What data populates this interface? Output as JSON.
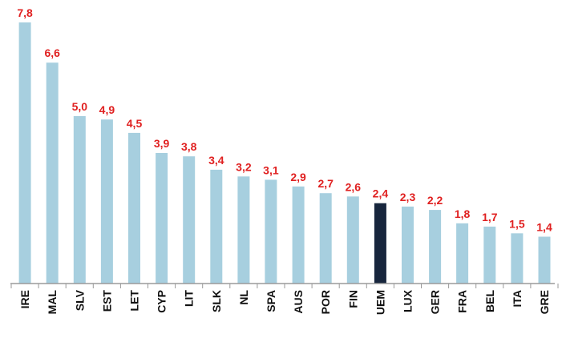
{
  "chart_data": {
    "type": "bar",
    "categories": [
      "IRE",
      "MAL",
      "SLV",
      "EST",
      "LET",
      "CYP",
      "LIT",
      "SLK",
      "NL",
      "SPA",
      "AUS",
      "POR",
      "FIN",
      "UEM",
      "LUX",
      "GER",
      "FRA",
      "BEL",
      "ITA",
      "GRE"
    ],
    "values": [
      7.8,
      6.6,
      5.0,
      4.9,
      4.5,
      3.9,
      3.8,
      3.4,
      3.2,
      3.1,
      2.9,
      2.7,
      2.6,
      2.4,
      2.3,
      2.2,
      1.8,
      1.7,
      1.5,
      1.4
    ],
    "value_labels": [
      "7,8",
      "6,6",
      "5,0",
      "4,9",
      "4,5",
      "3,9",
      "3,8",
      "3,4",
      "3,2",
      "3,1",
      "2,9",
      "2,7",
      "2,6",
      "2,4",
      "2,3",
      "2,2",
      "1,8",
      "1,7",
      "1,5",
      "1,4"
    ],
    "highlight_category": "UEM",
    "ylim": [
      0,
      7.8
    ],
    "grid": false,
    "title": "",
    "xlabel": "",
    "ylabel": "",
    "colors": {
      "bar": "#a7cfdf",
      "highlight": "#17263d",
      "label": "#e02020",
      "axis": "#9a9a9a",
      "tick_text": "#111111"
    }
  }
}
